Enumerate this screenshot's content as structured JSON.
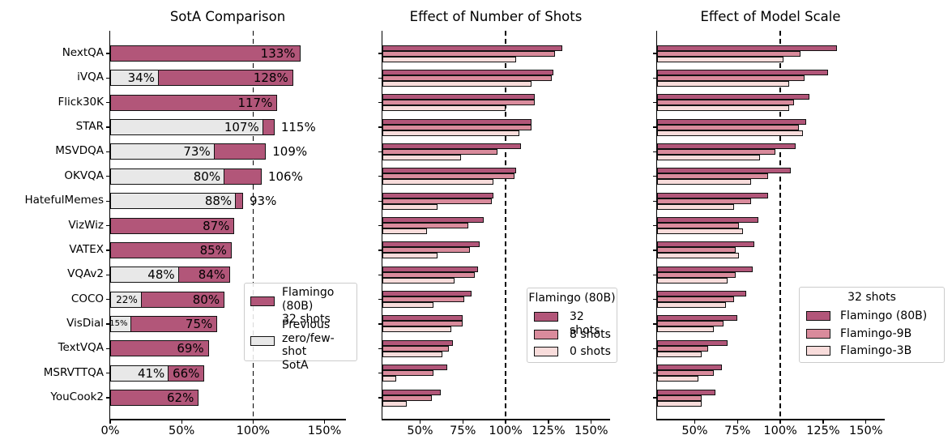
{
  "colors": {
    "dark": "#b25679",
    "medium": "#d98b9c",
    "light": "#f8dcdb",
    "grey": "#e8e8e8",
    "edge": "#111111",
    "dashed_line": "#000000",
    "legend_border": "#cccccc"
  },
  "chart_data": [
    {
      "type": "bar",
      "orientation": "horizontal",
      "title": "SotA Comparison",
      "xlabel": "",
      "ylabel": "",
      "xlim": [
        0,
        165
      ],
      "xticks": [
        0,
        50,
        100,
        150
      ],
      "xtick_labels": [
        "0%",
        "50%",
        "100%",
        "150%"
      ],
      "dashed_line_at": 100,
      "grid": false,
      "categories": [
        "NextQA",
        "iVQA",
        "Flick30K",
        "STAR",
        "MSVDQA",
        "OKVQA",
        "HatefulMemes",
        "VizWiz",
        "VATEX",
        "VQAv2",
        "COCO",
        "VisDial",
        "TextVQA",
        "MSRVTTQA",
        "YouCook2"
      ],
      "series": [
        {
          "name": "Flamingo (80B) 32 shots",
          "swatch": "dark",
          "values": [
            133,
            128,
            117,
            115,
            109,
            106,
            93,
            87,
            85,
            84,
            80,
            75,
            69,
            66,
            62
          ],
          "value_labels": [
            "133%",
            "128%",
            "117%",
            "115%",
            "109%",
            "106%",
            "93%",
            "87%",
            "85%",
            "84%",
            "80%",
            "75%",
            "69%",
            "66%",
            "62%"
          ],
          "label_outside": [
            false,
            false,
            false,
            true,
            true,
            true,
            true,
            false,
            false,
            false,
            false,
            false,
            false,
            false,
            false
          ]
        },
        {
          "name": "Previous zero/few-shot SotA",
          "swatch": "grey",
          "values": [
            null,
            34,
            null,
            107,
            73,
            80,
            88,
            null,
            null,
            48,
            22,
            15,
            null,
            41,
            null
          ],
          "value_labels": [
            null,
            "34%",
            null,
            "107%",
            "73%",
            "80%",
            "88%",
            null,
            null,
            "48%",
            "22%",
            "15%",
            null,
            "41%",
            null
          ]
        }
      ],
      "legend": {
        "position": "lower right",
        "entries": [
          {
            "swatch": "dark",
            "lines": [
              "Flamingo (80B)",
              "32 shots"
            ]
          },
          {
            "swatch": "grey",
            "lines": [
              "Previous",
              "zero/few-shot",
              "SotA"
            ]
          }
        ]
      }
    },
    {
      "type": "bar",
      "orientation": "horizontal",
      "title": "Effect of Number of Shots",
      "xlabel": "",
      "ylabel": "",
      "xlim": [
        28,
        161
      ],
      "xticks": [
        50,
        75,
        100,
        125,
        150
      ],
      "xtick_labels": [
        "50%",
        "75%",
        "100%",
        "125%",
        "150%"
      ],
      "dashed_line_at": 100,
      "grid": false,
      "categories": [
        "NextQA",
        "iVQA",
        "Flick30K",
        "STAR",
        "MSVDQA",
        "OKVQA",
        "HatefulMemes",
        "VizWiz",
        "VATEX",
        "VQAv2",
        "COCO",
        "VisDial",
        "TextVQA",
        "MSRVTTQA",
        "YouCook2"
      ],
      "series": [
        {
          "name": "32 shots",
          "swatch": "dark",
          "values": [
            133,
            128,
            117,
            115,
            109,
            106,
            93,
            87,
            85,
            84,
            80,
            75,
            69,
            66,
            62
          ]
        },
        {
          "name": "8 shots",
          "swatch": "medium",
          "values": [
            129,
            127,
            117,
            115,
            95,
            105,
            92,
            78,
            79,
            82,
            76,
            75,
            67,
            58,
            57
          ]
        },
        {
          "name": "0 shots",
          "swatch": "light",
          "values": [
            106,
            115,
            100,
            108,
            74,
            93,
            60,
            54,
            60,
            70,
            58,
            68,
            63,
            36,
            42
          ]
        }
      ],
      "legend": {
        "position": "lower right",
        "title": "Flamingo (80B)",
        "entries": [
          {
            "swatch": "dark",
            "label": "32 shots"
          },
          {
            "swatch": "medium",
            "label": "8 shots"
          },
          {
            "swatch": "light",
            "label": "0 shots"
          }
        ]
      }
    },
    {
      "type": "bar",
      "orientation": "horizontal",
      "title": "Effect of Model Scale",
      "xlabel": "",
      "ylabel": "",
      "xlim": [
        28,
        161
      ],
      "xticks": [
        50,
        75,
        100,
        125,
        150
      ],
      "xtick_labels": [
        "50%",
        "75%",
        "100%",
        "125%",
        "150%"
      ],
      "dashed_line_at": 100,
      "grid": false,
      "categories": [
        "NextQA",
        "iVQA",
        "Flick30K",
        "STAR",
        "MSVDQA",
        "OKVQA",
        "HatefulMemes",
        "VizWiz",
        "VATEX",
        "VQAv2",
        "COCO",
        "VisDial",
        "TextVQA",
        "MSRVTTQA",
        "YouCook2"
      ],
      "series": [
        {
          "name": "Flamingo (80B)",
          "swatch": "dark",
          "values": [
            133,
            128,
            117,
            115,
            109,
            106,
            93,
            87,
            85,
            84,
            80,
            75,
            69,
            66,
            62
          ]
        },
        {
          "name": "Flamingo-9B",
          "swatch": "medium",
          "values": [
            112,
            114,
            108,
            111,
            97,
            93,
            83,
            76,
            74,
            74,
            73,
            67,
            58,
            61,
            54
          ]
        },
        {
          "name": "Flamingo-3B",
          "swatch": "light",
          "values": [
            102,
            105,
            105,
            113,
            88,
            83,
            73,
            78,
            76,
            69,
            68,
            61,
            54,
            52,
            54
          ]
        }
      ],
      "legend": {
        "position": "lower right",
        "title": "32 shots",
        "entries": [
          {
            "swatch": "dark",
            "label": "Flamingo (80B)"
          },
          {
            "swatch": "medium",
            "label": "Flamingo-9B"
          },
          {
            "swatch": "light",
            "label": "Flamingo-3B"
          }
        ]
      }
    }
  ]
}
